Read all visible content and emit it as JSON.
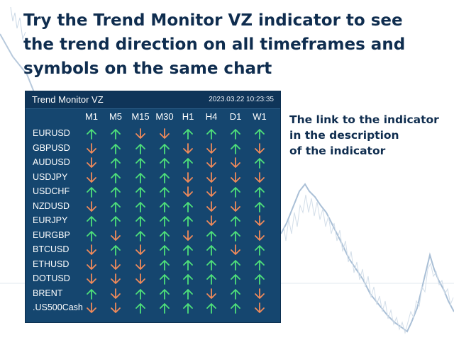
{
  "headline": [
    "Try the Trend Monitor VZ indicator to see",
    "the trend direction on all timeframes and",
    "symbols on the same chart"
  ],
  "side_note": [
    "The link to the indicator",
    "in the description",
    "of the indicator"
  ],
  "panel": {
    "title": "Trend Monitor VZ",
    "datetime": "2023.03.22 10:23:35",
    "timeframes": [
      "M1",
      "M5",
      "M15",
      "M30",
      "H1",
      "H4",
      "D1",
      "W1"
    ],
    "rows": [
      {
        "symbol": "EURUSD",
        "trend": [
          "up",
          "up",
          "down",
          "down",
          "up",
          "up",
          "up",
          "up"
        ]
      },
      {
        "symbol": "GBPUSD",
        "trend": [
          "down",
          "up",
          "up",
          "up",
          "down",
          "down",
          "up",
          "down"
        ]
      },
      {
        "symbol": "AUDUSD",
        "trend": [
          "down",
          "up",
          "up",
          "up",
          "up",
          "down",
          "down",
          "up"
        ]
      },
      {
        "symbol": "USDJPY",
        "trend": [
          "down",
          "up",
          "up",
          "up",
          "down",
          "down",
          "down",
          "down"
        ]
      },
      {
        "symbol": "USDCHF",
        "trend": [
          "up",
          "up",
          "up",
          "up",
          "down",
          "down",
          "up",
          "up"
        ]
      },
      {
        "symbol": "NZDUSD",
        "trend": [
          "down",
          "up",
          "up",
          "up",
          "up",
          "down",
          "down",
          "up"
        ]
      },
      {
        "symbol": "EURJPY",
        "trend": [
          "up",
          "up",
          "up",
          "up",
          "up",
          "down",
          "up",
          "down"
        ]
      },
      {
        "symbol": "EURGBP",
        "trend": [
          "up",
          "down",
          "up",
          "up",
          "down",
          "up",
          "up",
          "down"
        ]
      },
      {
        "symbol": "BTCUSD",
        "trend": [
          "down",
          "up",
          "down",
          "up",
          "up",
          "up",
          "down",
          "up"
        ]
      },
      {
        "symbol": "ETHUSD",
        "trend": [
          "down",
          "down",
          "down",
          "up",
          "up",
          "up",
          "up",
          "up"
        ]
      },
      {
        "symbol": "DOTUSD",
        "trend": [
          "down",
          "down",
          "down",
          "up",
          "up",
          "up",
          "up",
          "up"
        ]
      },
      {
        "symbol": "BRENT",
        "trend": [
          "up",
          "down",
          "up",
          "up",
          "up",
          "down",
          "up",
          "down"
        ]
      },
      {
        "symbol": ".US500Cash",
        "trend": [
          "down",
          "down",
          "up",
          "up",
          "up",
          "up",
          "up",
          "down"
        ]
      }
    ]
  },
  "colors": {
    "up": "#4ee07a",
    "down": "#f08a5a",
    "panel_bg": "#15466f",
    "header_bg": "#0f3559",
    "text_dark": "#0f2d4f",
    "chart_line": "#b7c9dc"
  }
}
